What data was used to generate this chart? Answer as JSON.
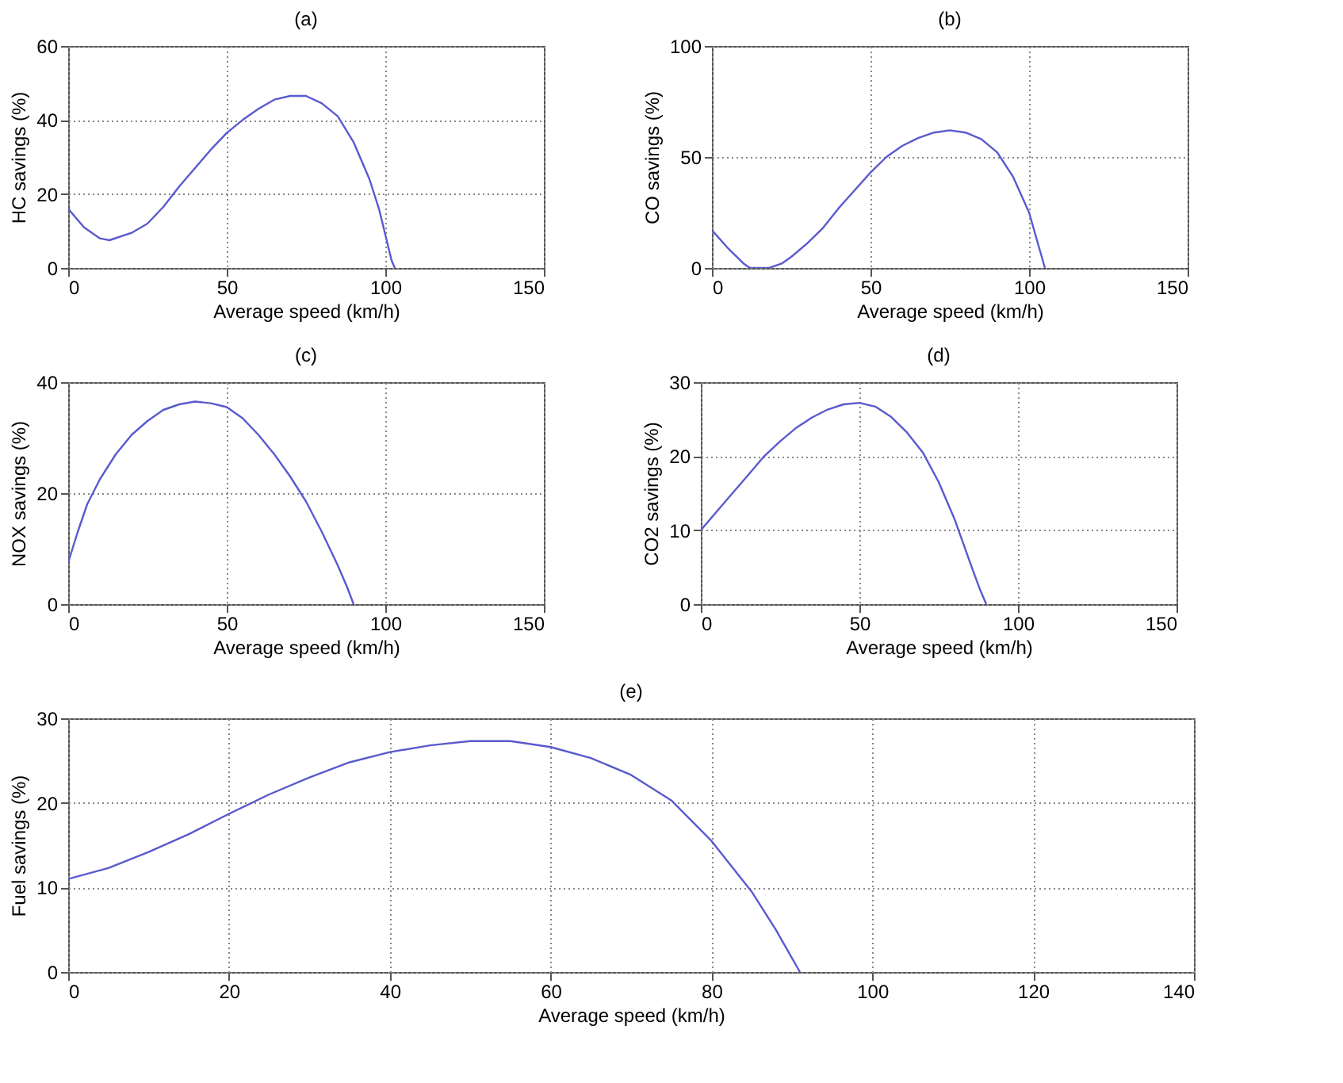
{
  "chart_data": [
    {
      "type": "line",
      "title": "(a)",
      "xlabel": "Average speed (km/h)",
      "ylabel": "HC savings (%)",
      "xlim": [
        0,
        150
      ],
      "xticks": [
        0,
        50,
        100,
        150
      ],
      "ylim": [
        0,
        60
      ],
      "yticks": [
        0,
        20,
        40,
        60
      ],
      "grid": true,
      "marker": "none",
      "line_style": "solid",
      "series": [
        {
          "color": "#5a5acf",
          "x": [
            0,
            5,
            10,
            13,
            20,
            25,
            30,
            35,
            40,
            45,
            50,
            55,
            60,
            65,
            70,
            75,
            80,
            85,
            90,
            95,
            98,
            100,
            102,
            103
          ],
          "values": [
            16,
            11,
            8,
            7.5,
            9.5,
            12,
            16.5,
            22,
            27,
            32,
            36.5,
            40,
            43,
            45.5,
            46.5,
            46.5,
            44.5,
            41,
            34,
            24,
            16,
            9,
            2,
            0
          ]
        }
      ]
    },
    {
      "type": "line",
      "title": "(b)",
      "xlabel": "Average speed (km/h)",
      "ylabel": "CO savings (%)",
      "xlim": [
        0,
        150
      ],
      "xticks": [
        0,
        50,
        100,
        150
      ],
      "ylim": [
        0,
        100
      ],
      "yticks": [
        0,
        50,
        100
      ],
      "grid": true,
      "marker": "none",
      "line_style": "solid",
      "series": [
        {
          "color": "#5a5acf",
          "x": [
            0,
            5,
            10,
            12,
            18,
            22,
            25,
            30,
            35,
            40,
            45,
            50,
            55,
            60,
            65,
            70,
            75,
            80,
            85,
            90,
            95,
            100,
            103,
            105
          ],
          "values": [
            17,
            9,
            2,
            0,
            0,
            2,
            5,
            11,
            18,
            27,
            35,
            43,
            50,
            55,
            58.5,
            61,
            62,
            61,
            58,
            52,
            41,
            25,
            10,
            0
          ]
        }
      ]
    },
    {
      "type": "line",
      "title": "(c)",
      "xlabel": "Average speed (km/h)",
      "ylabel": "NOX savings (%)",
      "xlim": [
        0,
        150
      ],
      "xticks": [
        0,
        50,
        100,
        150
      ],
      "ylim": [
        0,
        40
      ],
      "yticks": [
        0,
        20,
        40
      ],
      "grid": true,
      "marker": "none",
      "line_style": "solid",
      "series": [
        {
          "color": "#5a5acf",
          "x": [
            0,
            3,
            6,
            10,
            15,
            20,
            25,
            30,
            35,
            40,
            45,
            50,
            55,
            60,
            65,
            70,
            75,
            80,
            85,
            88,
            90
          ],
          "values": [
            7.5,
            13,
            18,
            22.5,
            27,
            30.5,
            33,
            35,
            36,
            36.5,
            36.2,
            35.5,
            33.5,
            30.5,
            27,
            23,
            18.5,
            13,
            7,
            3,
            0
          ]
        }
      ]
    },
    {
      "type": "line",
      "title": "(d)",
      "xlabel": "Average speed (km/h)",
      "ylabel": "CO2  savings (%)",
      "xlim": [
        0,
        150
      ],
      "xticks": [
        0,
        50,
        100,
        150
      ],
      "ylim": [
        0,
        30
      ],
      "yticks": [
        0,
        10,
        20,
        30
      ],
      "grid": true,
      "marker": "none",
      "line_style": "solid",
      "series": [
        {
          "color": "#5a5acf",
          "x": [
            0,
            5,
            10,
            15,
            20,
            25,
            30,
            35,
            40,
            45,
            50,
            55,
            60,
            65,
            70,
            75,
            80,
            85,
            88,
            90
          ],
          "values": [
            10,
            12.5,
            15,
            17.5,
            20,
            22,
            23.8,
            25.2,
            26.3,
            27,
            27.2,
            26.7,
            25.3,
            23.2,
            20.5,
            16.5,
            11.5,
            5.5,
            2,
            0
          ]
        }
      ]
    },
    {
      "type": "line",
      "title": "(e)",
      "xlabel": "Average speed (km/h)",
      "ylabel": "Fuel savings (%)",
      "xlim": [
        0,
        140
      ],
      "xticks": [
        0,
        20,
        40,
        60,
        80,
        100,
        120,
        140
      ],
      "ylim": [
        0,
        30
      ],
      "yticks": [
        0,
        10,
        20,
        30
      ],
      "grid": true,
      "marker": "none",
      "line_style": "solid",
      "series": [
        {
          "color": "#5a5acf",
          "x": [
            0,
            5,
            10,
            15,
            20,
            25,
            30,
            35,
            40,
            45,
            50,
            55,
            60,
            65,
            70,
            75,
            80,
            85,
            88,
            91
          ],
          "values": [
            11,
            12.3,
            14.2,
            16.3,
            18.7,
            21,
            23,
            24.8,
            26,
            26.8,
            27.3,
            27.3,
            26.6,
            25.3,
            23.3,
            20.3,
            15.5,
            9.5,
            5,
            0
          ]
        }
      ]
    }
  ]
}
